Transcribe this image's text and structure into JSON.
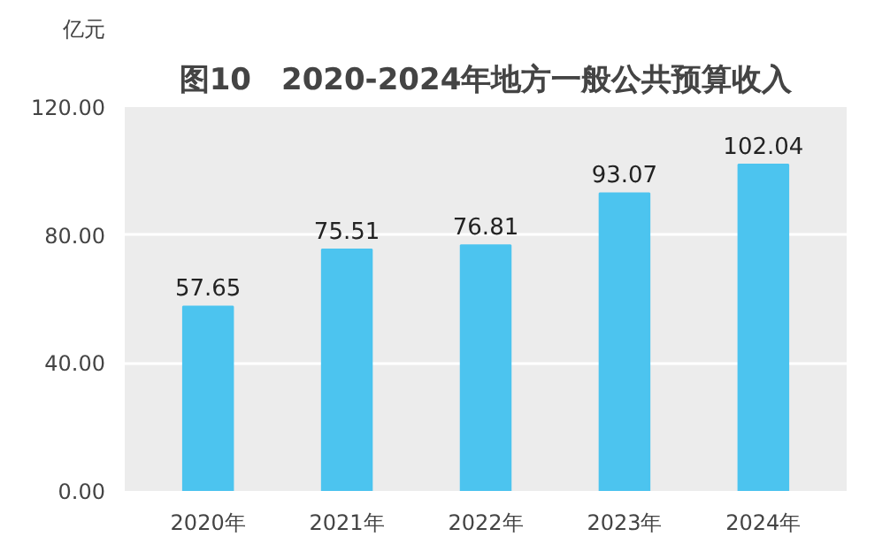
{
  "chart_data": {
    "type": "bar",
    "title": "图10　2020-2024年地方一般公共预算收入",
    "ylabel": "亿元",
    "categories": [
      "2020年",
      "2021年",
      "2022年",
      "2023年",
      "2024年"
    ],
    "values": [
      57.65,
      75.51,
      76.81,
      93.07,
      102.04
    ],
    "color": "#4cc4ef",
    "ylim": [
      0,
      120
    ],
    "yticks": [
      {
        "value": 0,
        "label": "0.00"
      },
      {
        "value": 40,
        "label": "40.00"
      },
      {
        "value": 80,
        "label": "80.00"
      },
      {
        "value": 120,
        "label": "120.00"
      }
    ],
    "grid": "y",
    "data_labels": true
  }
}
